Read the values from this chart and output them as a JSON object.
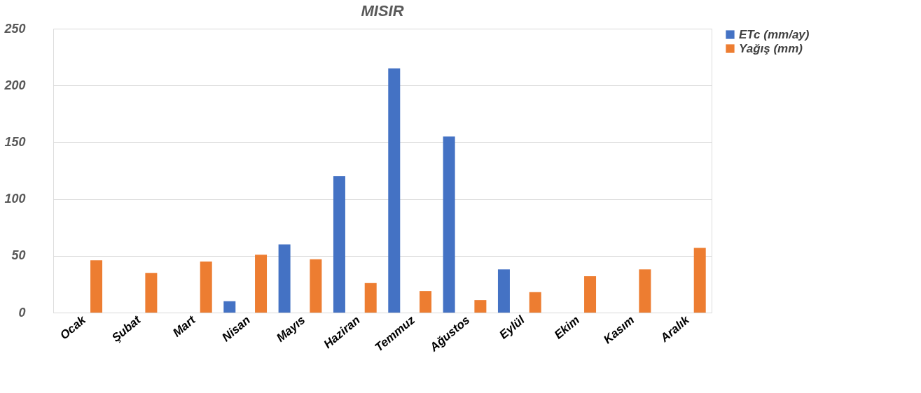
{
  "chart_data": {
    "type": "bar",
    "title": "MISIR",
    "categories": [
      "Ocak",
      "Şubat",
      "Mart",
      "Nisan",
      "Mayıs",
      "Haziran",
      "Temmuz",
      "Ağustos",
      "Eylül",
      "Ekim",
      "Kasım",
      "Aralık"
    ],
    "series": [
      {
        "name": "ETc (mm/ay)",
        "color": "#4472c4",
        "values": [
          null,
          null,
          null,
          10,
          60,
          120,
          215,
          155,
          38,
          null,
          null,
          null
        ]
      },
      {
        "name": "Yağış (mm)",
        "color": "#ed7d31",
        "values": [
          46,
          35,
          45,
          51,
          47,
          26,
          19,
          11,
          18,
          32,
          38,
          57
        ]
      }
    ],
    "ylim": [
      0,
      250
    ],
    "yticks": [
      0,
      50,
      100,
      150,
      200,
      250
    ],
    "grid": "y",
    "legend": "right"
  }
}
